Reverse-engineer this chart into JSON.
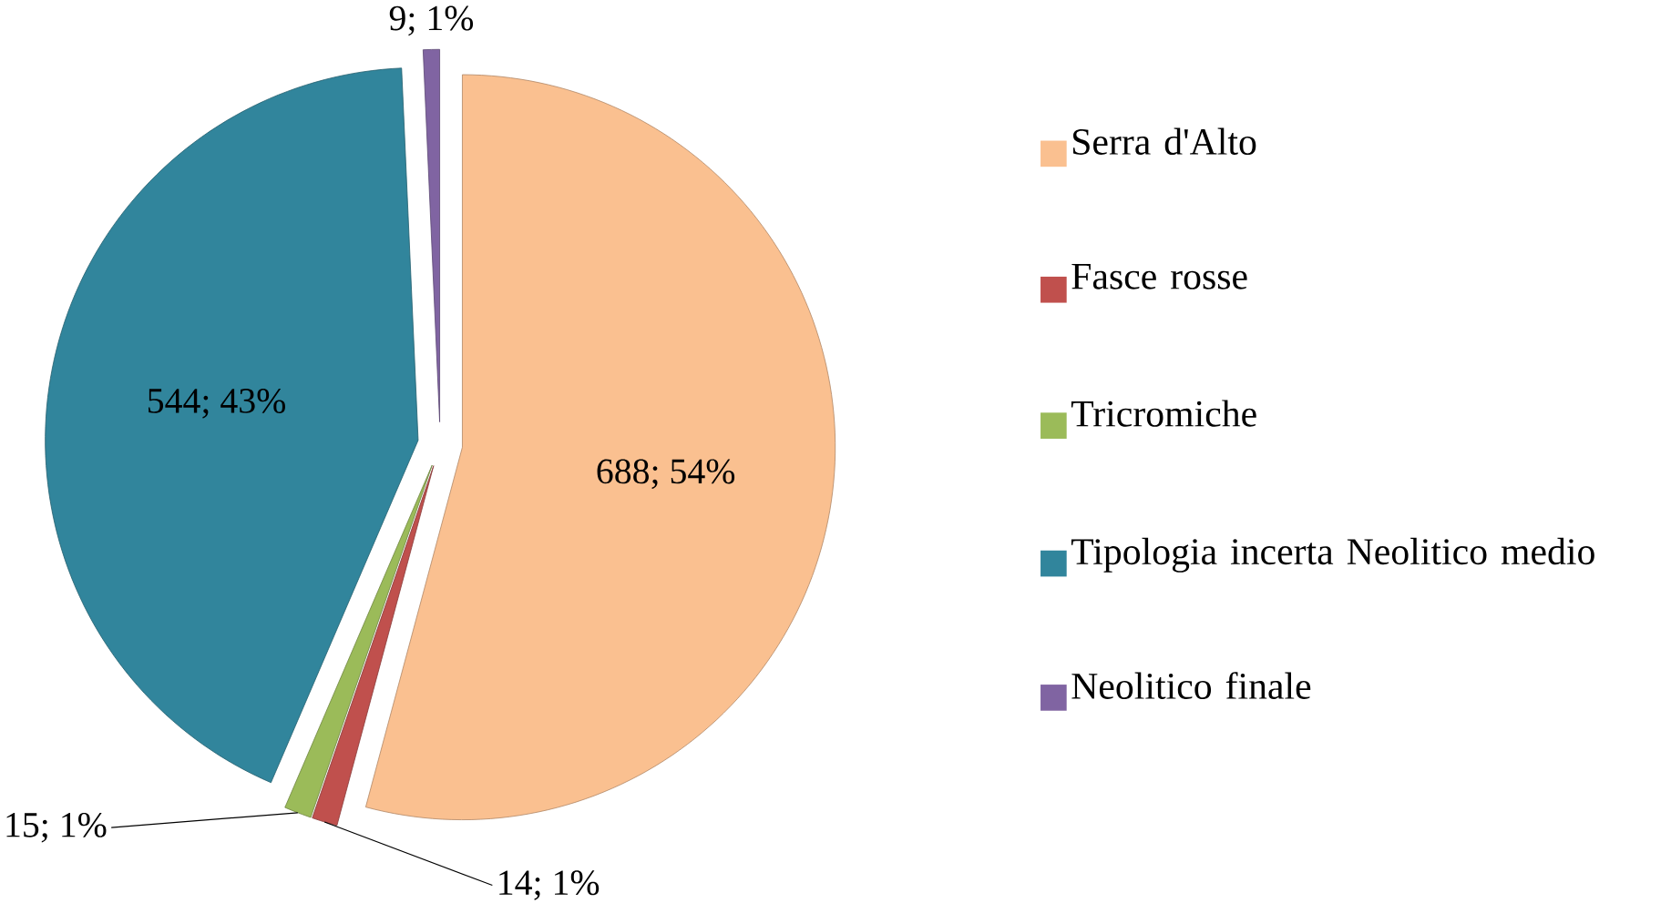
{
  "chart_data": {
    "type": "pie",
    "categories": [
      "Serra d'Alto",
      "Fasce rosse",
      "Tricromiche",
      "Tipologia incerta  Neolitico medio",
      "Neolitico finale"
    ],
    "values": [
      688,
      14,
      15,
      544,
      9
    ],
    "value_labels": [
      "688; 54%",
      "14; 1%",
      "15; 1%",
      "544; 43%",
      "9; 1%"
    ],
    "colors": [
      "#fac090",
      "#c0504d",
      "#9bbb59",
      "#31859c",
      "#8064a2"
    ],
    "legend": "right"
  }
}
